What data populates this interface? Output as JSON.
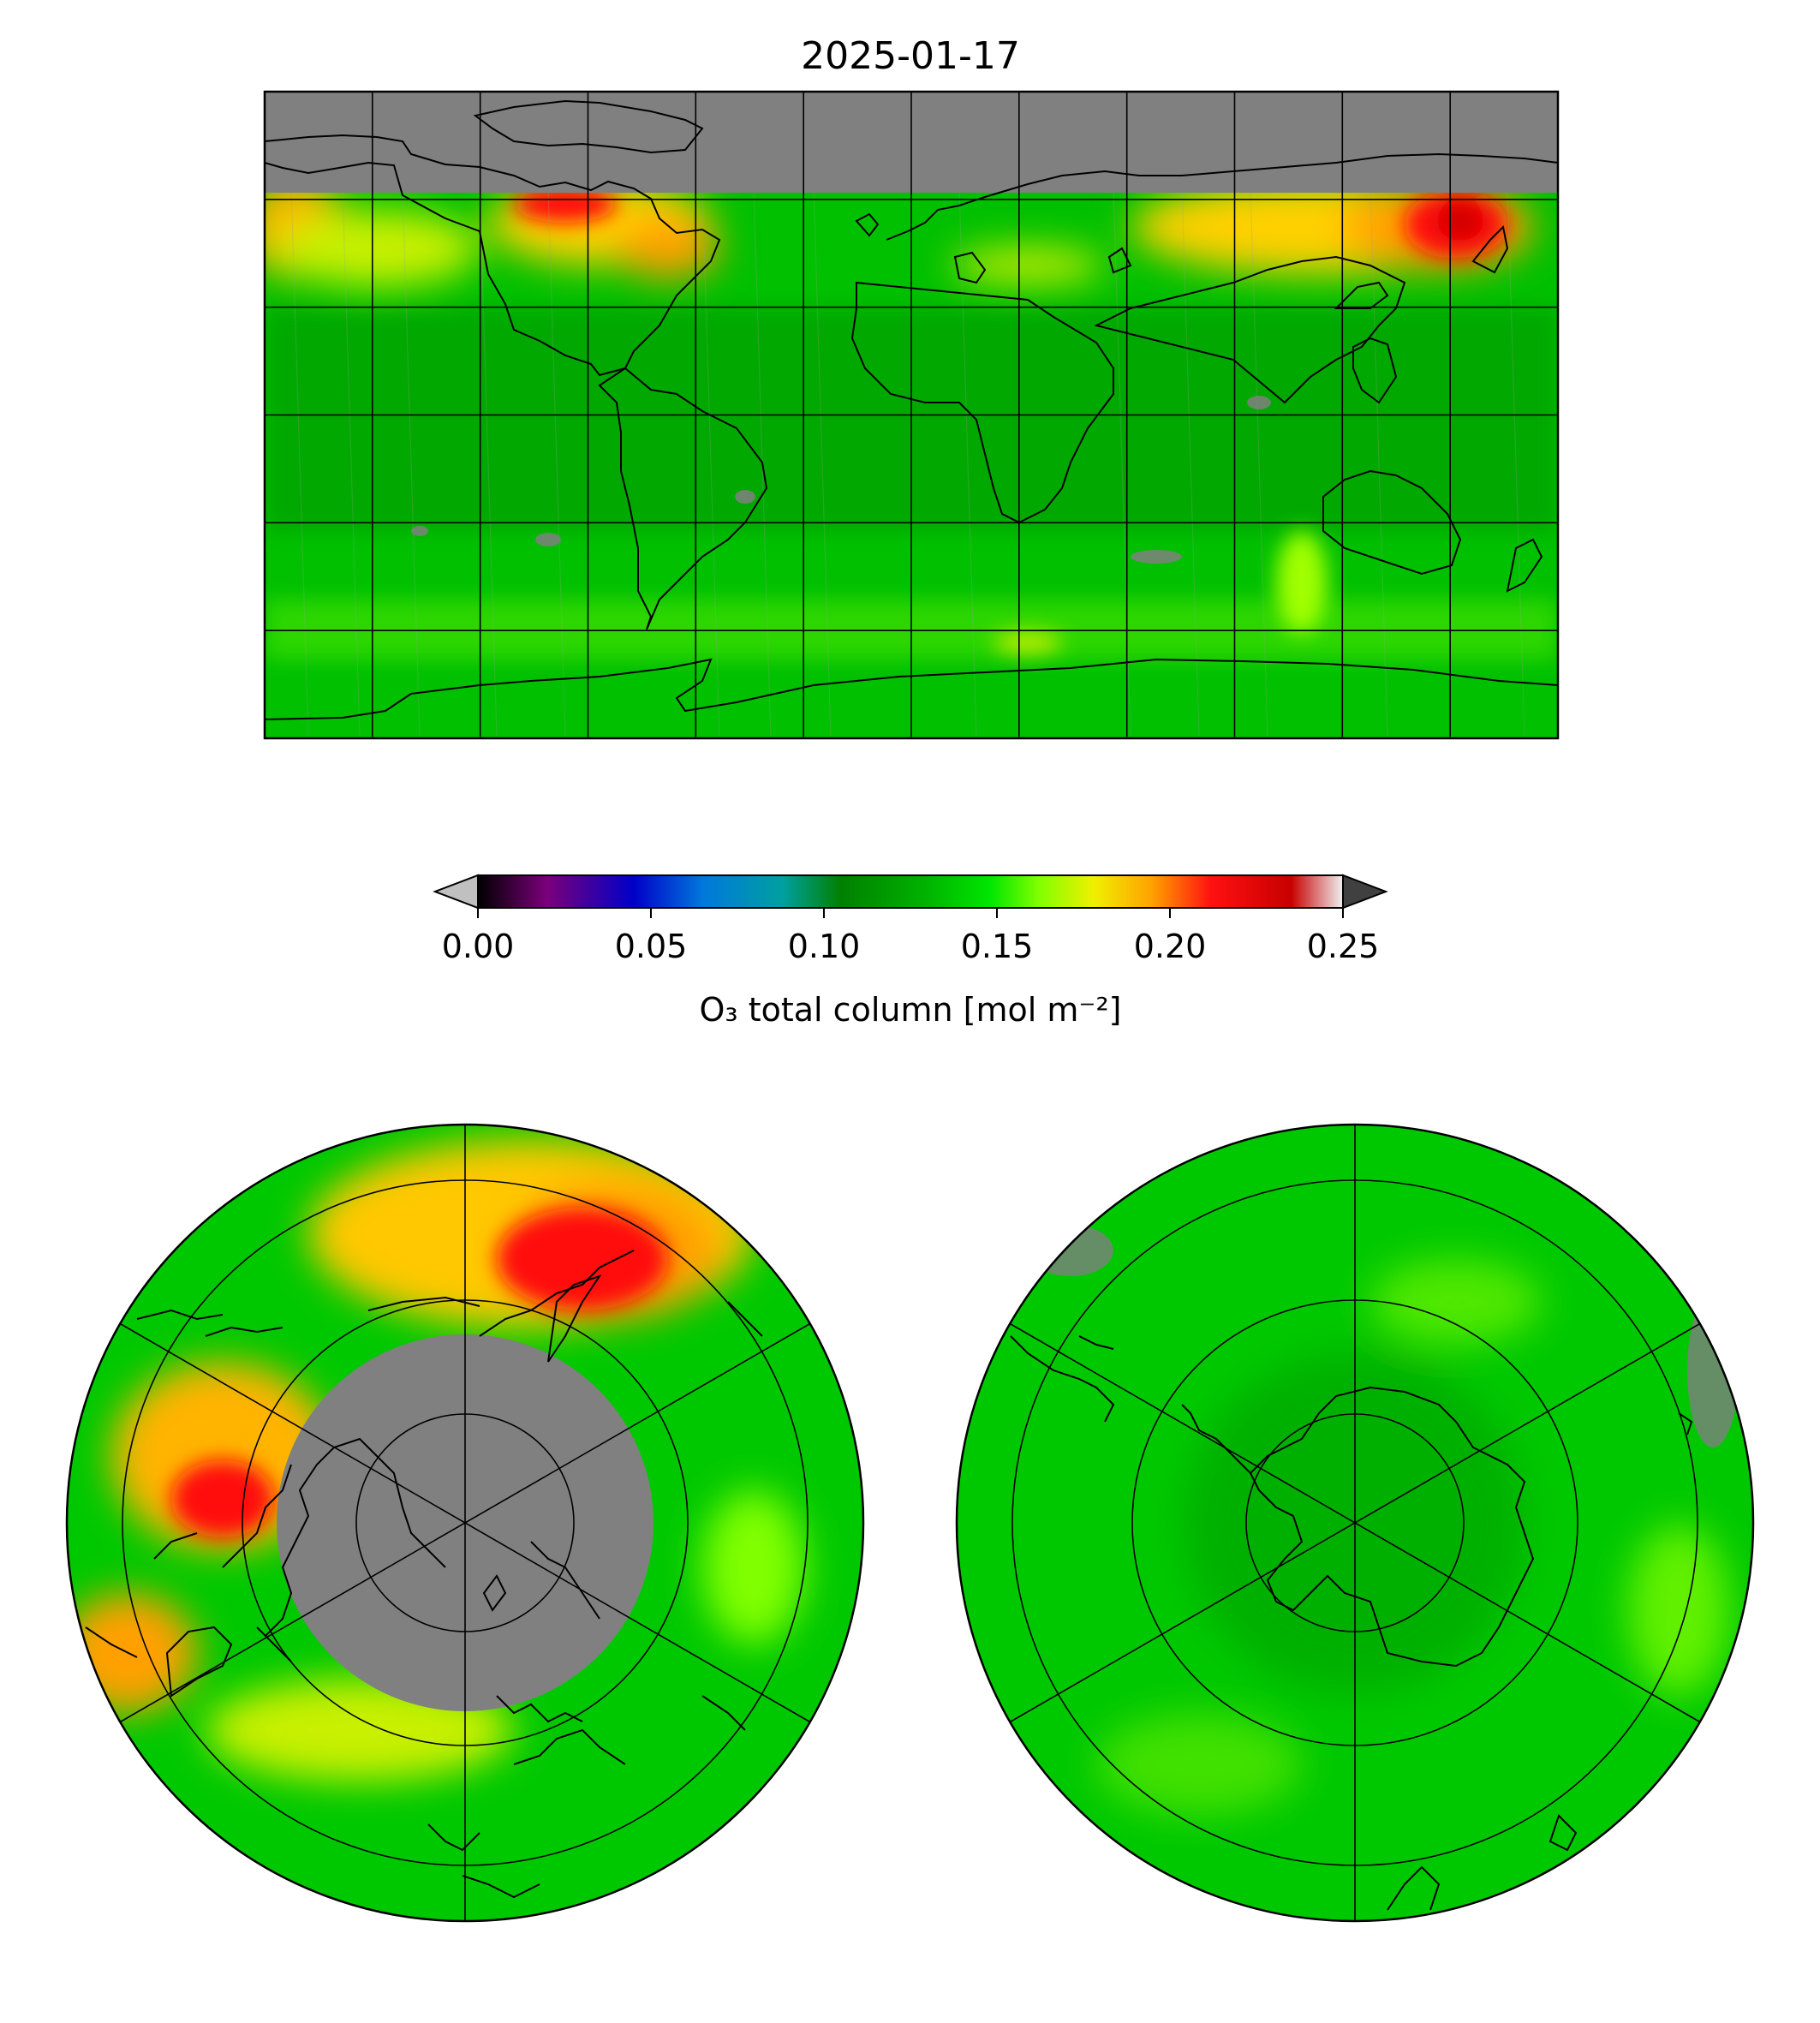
{
  "figure": {
    "title": "2025-01-17"
  },
  "colorbar": {
    "label": "O₃ total column [mol m⁻²]",
    "ticks": [
      "0.00",
      "0.05",
      "0.10",
      "0.15",
      "0.20",
      "0.25"
    ],
    "range": [
      0,
      0.25
    ],
    "extend": "both",
    "under_color": "#c0c0c0",
    "over_color": "#404040",
    "stops": [
      {
        "v": 0.0,
        "c": "#000000"
      },
      {
        "v": 0.02,
        "c": "#7a007a"
      },
      {
        "v": 0.045,
        "c": "#0000c8"
      },
      {
        "v": 0.065,
        "c": "#0078dc"
      },
      {
        "v": 0.088,
        "c": "#00a0a0"
      },
      {
        "v": 0.105,
        "c": "#008000"
      },
      {
        "v": 0.13,
        "c": "#00b400"
      },
      {
        "v": 0.148,
        "c": "#00e600"
      },
      {
        "v": 0.162,
        "c": "#80ff00"
      },
      {
        "v": 0.178,
        "c": "#f0f000"
      },
      {
        "v": 0.195,
        "c": "#ffa000"
      },
      {
        "v": 0.212,
        "c": "#ff1010"
      },
      {
        "v": 0.235,
        "c": "#c80000"
      },
      {
        "v": 0.25,
        "c": "#f0f0f0"
      }
    ]
  },
  "colors": {
    "no_data": "#808080",
    "background_field": "#00c800",
    "coast": "#000000"
  },
  "maps": [
    {
      "name": "global",
      "projection": "plate-carree",
      "gridlines": "every 30° lon, 30° lat"
    },
    {
      "name": "north-polar",
      "projection": "north-polar-stereographic",
      "gridlines": "every 60° lon, 15° lat"
    },
    {
      "name": "south-polar",
      "projection": "south-polar-stereographic",
      "gridlines": "every 60° lon, 15° lat"
    }
  ]
}
